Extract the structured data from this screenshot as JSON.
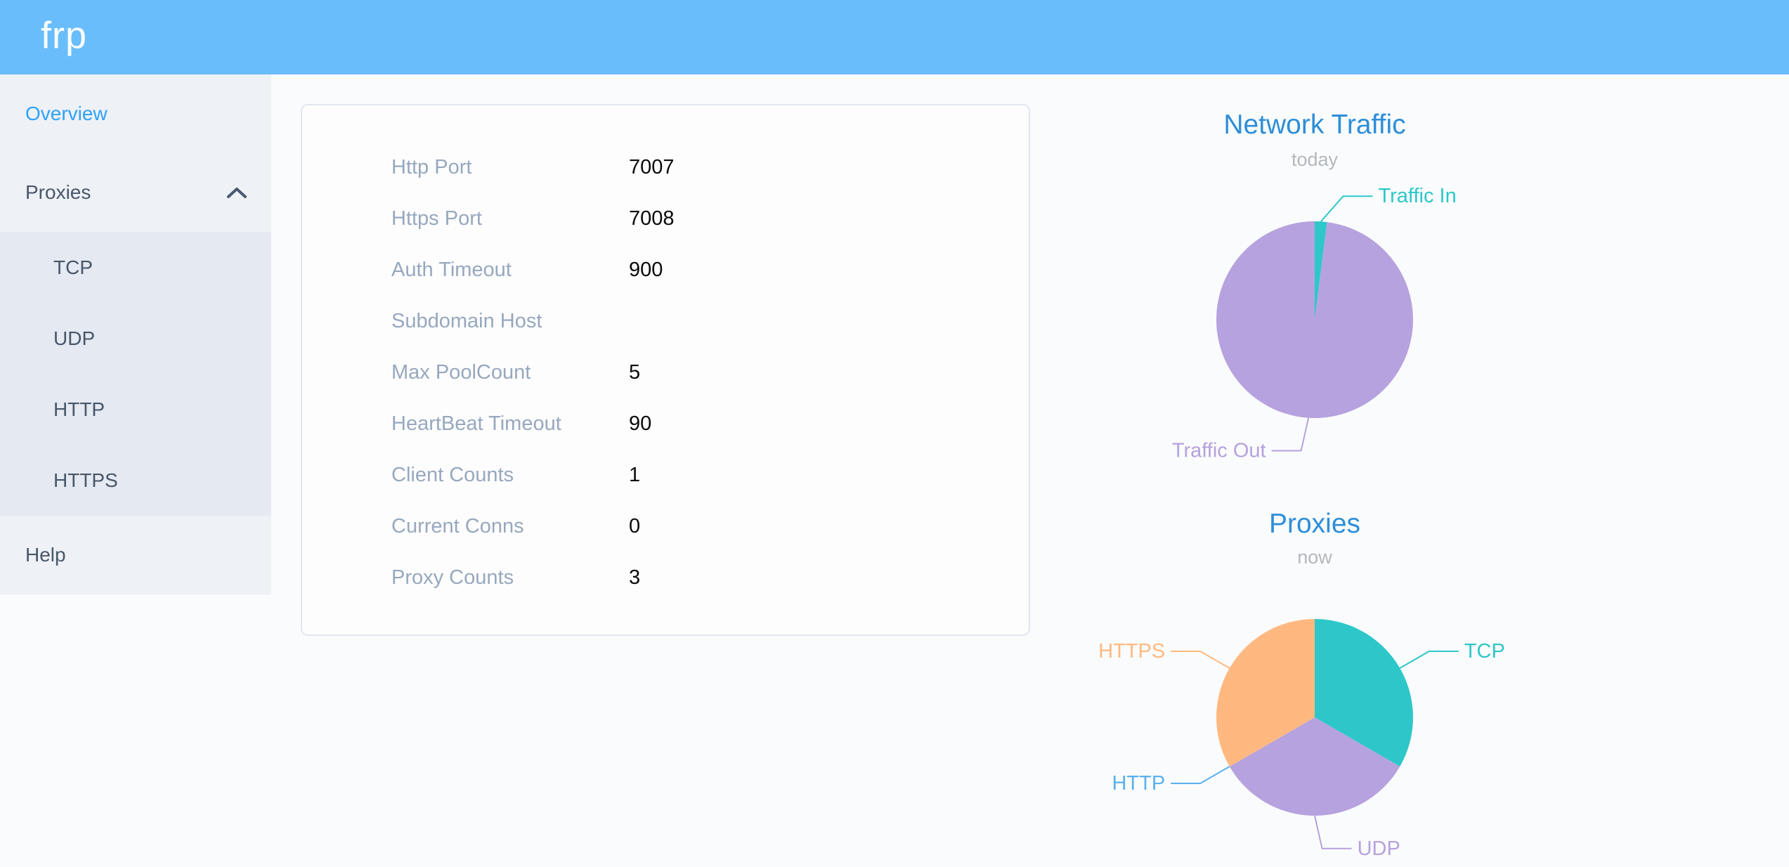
{
  "app": {
    "logo_text": "frp",
    "header_color": "#6abdfb",
    "accent_color": "#2fa1fa"
  },
  "sidebar": {
    "active_item": "Overview",
    "overview_label": "Overview",
    "proxies_label": "Proxies",
    "proxies_expanded": true,
    "proxies_children": [
      "TCP",
      "UDP",
      "HTTP",
      "HTTPS"
    ],
    "help_label": "Help"
  },
  "server_info": {
    "rows": [
      {
        "label": "Http Port",
        "value": "7007"
      },
      {
        "label": "Https Port",
        "value": "7008"
      },
      {
        "label": "Auth Timeout",
        "value": "900"
      },
      {
        "label": "Subdomain Host",
        "value": ""
      },
      {
        "label": "Max PoolCount",
        "value": "5"
      },
      {
        "label": "HeartBeat Timeout",
        "value": "90"
      },
      {
        "label": "Client Counts",
        "value": "1"
      },
      {
        "label": "Current Conns",
        "value": "0"
      },
      {
        "label": "Proxy Counts",
        "value": "3"
      }
    ]
  },
  "chart_data": [
    {
      "type": "pie",
      "title": "Network Traffic",
      "subtitle": "today",
      "legend_position": "none",
      "label_style": "outside-leader-lines",
      "slices": [
        {
          "name": "Traffic In",
          "percent": 2,
          "color": "#2ec7c9"
        },
        {
          "name": "Traffic Out",
          "percent": 98,
          "color": "#b6a2de"
        }
      ]
    },
    {
      "type": "pie",
      "title": "Proxies",
      "subtitle": "now",
      "legend_position": "none",
      "label_style": "outside-leader-lines",
      "slices": [
        {
          "name": "TCP",
          "value": 1,
          "color": "#2ec7c9"
        },
        {
          "name": "UDP",
          "value": 1,
          "color": "#b6a2de"
        },
        {
          "name": "HTTP",
          "value": 0,
          "color": "#5ab1ef"
        },
        {
          "name": "HTTPS",
          "value": 1,
          "color": "#ffb980"
        }
      ]
    }
  ]
}
